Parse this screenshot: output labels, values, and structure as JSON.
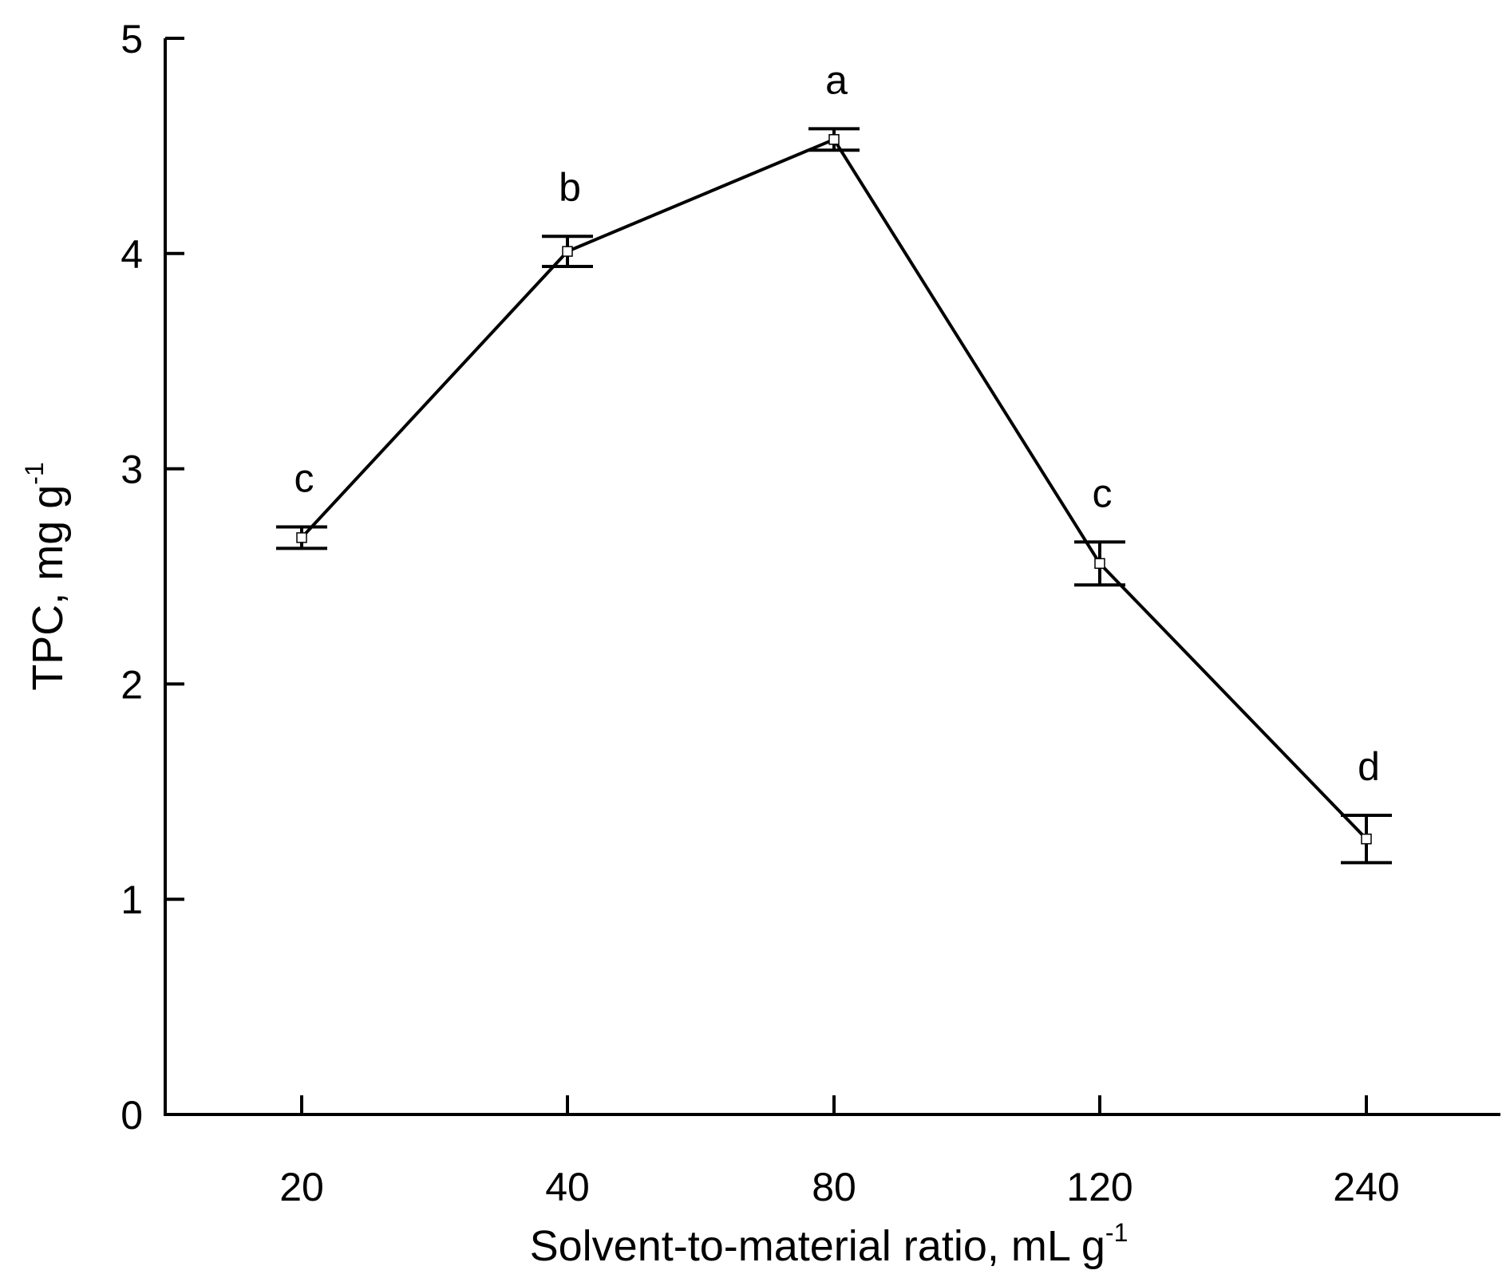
{
  "chart_data": {
    "type": "line",
    "title": "",
    "xlabel": "Solvent-to-material ratio, mL g",
    "xlabel_superscript": "-1",
    "ylabel": "TPC, mg g",
    "ylabel_superscript": "-1",
    "categories": [
      "20",
      "40",
      "80",
      "120",
      "240"
    ],
    "series": [
      {
        "name": "TPC",
        "values": [
          2.68,
          4.01,
          4.53,
          2.56,
          1.28
        ],
        "error": [
          0.05,
          0.07,
          0.05,
          0.1,
          0.11
        ],
        "significance": [
          "c",
          "b",
          "a",
          "c",
          "d"
        ]
      }
    ],
    "ylim": [
      0,
      5
    ],
    "yticks": [
      "0",
      "1",
      "2",
      "3",
      "4",
      "5"
    ],
    "grid": false,
    "legend": "none",
    "colors": {
      "line": "#000000",
      "background": "#ffffff"
    }
  }
}
